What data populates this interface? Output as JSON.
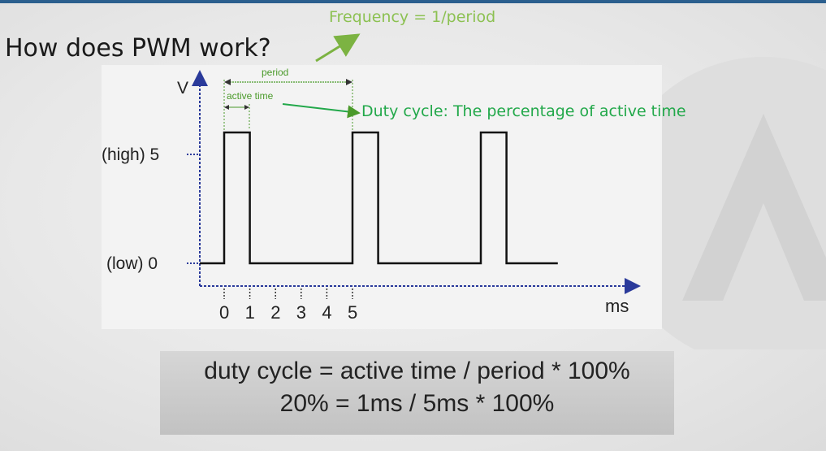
{
  "slide": {
    "title": "How does PWM work?",
    "frequency_note": "Frequency = 1/period",
    "duty_note": "Duty cycle: The percentage of active time"
  },
  "diagram": {
    "y_axis_label": "V",
    "y_high_label": "(high) 5",
    "y_low_label": "(low) 0",
    "x_unit": "ms",
    "x_ticks": [
      "0",
      "1",
      "2",
      "3",
      "4",
      "5"
    ],
    "period_label": "period",
    "active_time_label": "active time",
    "pulse_high_v": 5,
    "pulse_low_v": 0,
    "period_ms": 5,
    "active_ms": 1,
    "pulses_start_ms": [
      0,
      5,
      10
    ],
    "signal_end_ms": 13,
    "colors": {
      "signal": "#111111",
      "axis": "#2a3a9a",
      "annotation": "#4a9a2a",
      "frequency_text": "#8cc152",
      "duty_text": "#22a84a"
    }
  },
  "formula": {
    "line1": "duty cycle = active time / period * 100%",
    "line2": "20% = 1ms / 5ms * 100%"
  }
}
